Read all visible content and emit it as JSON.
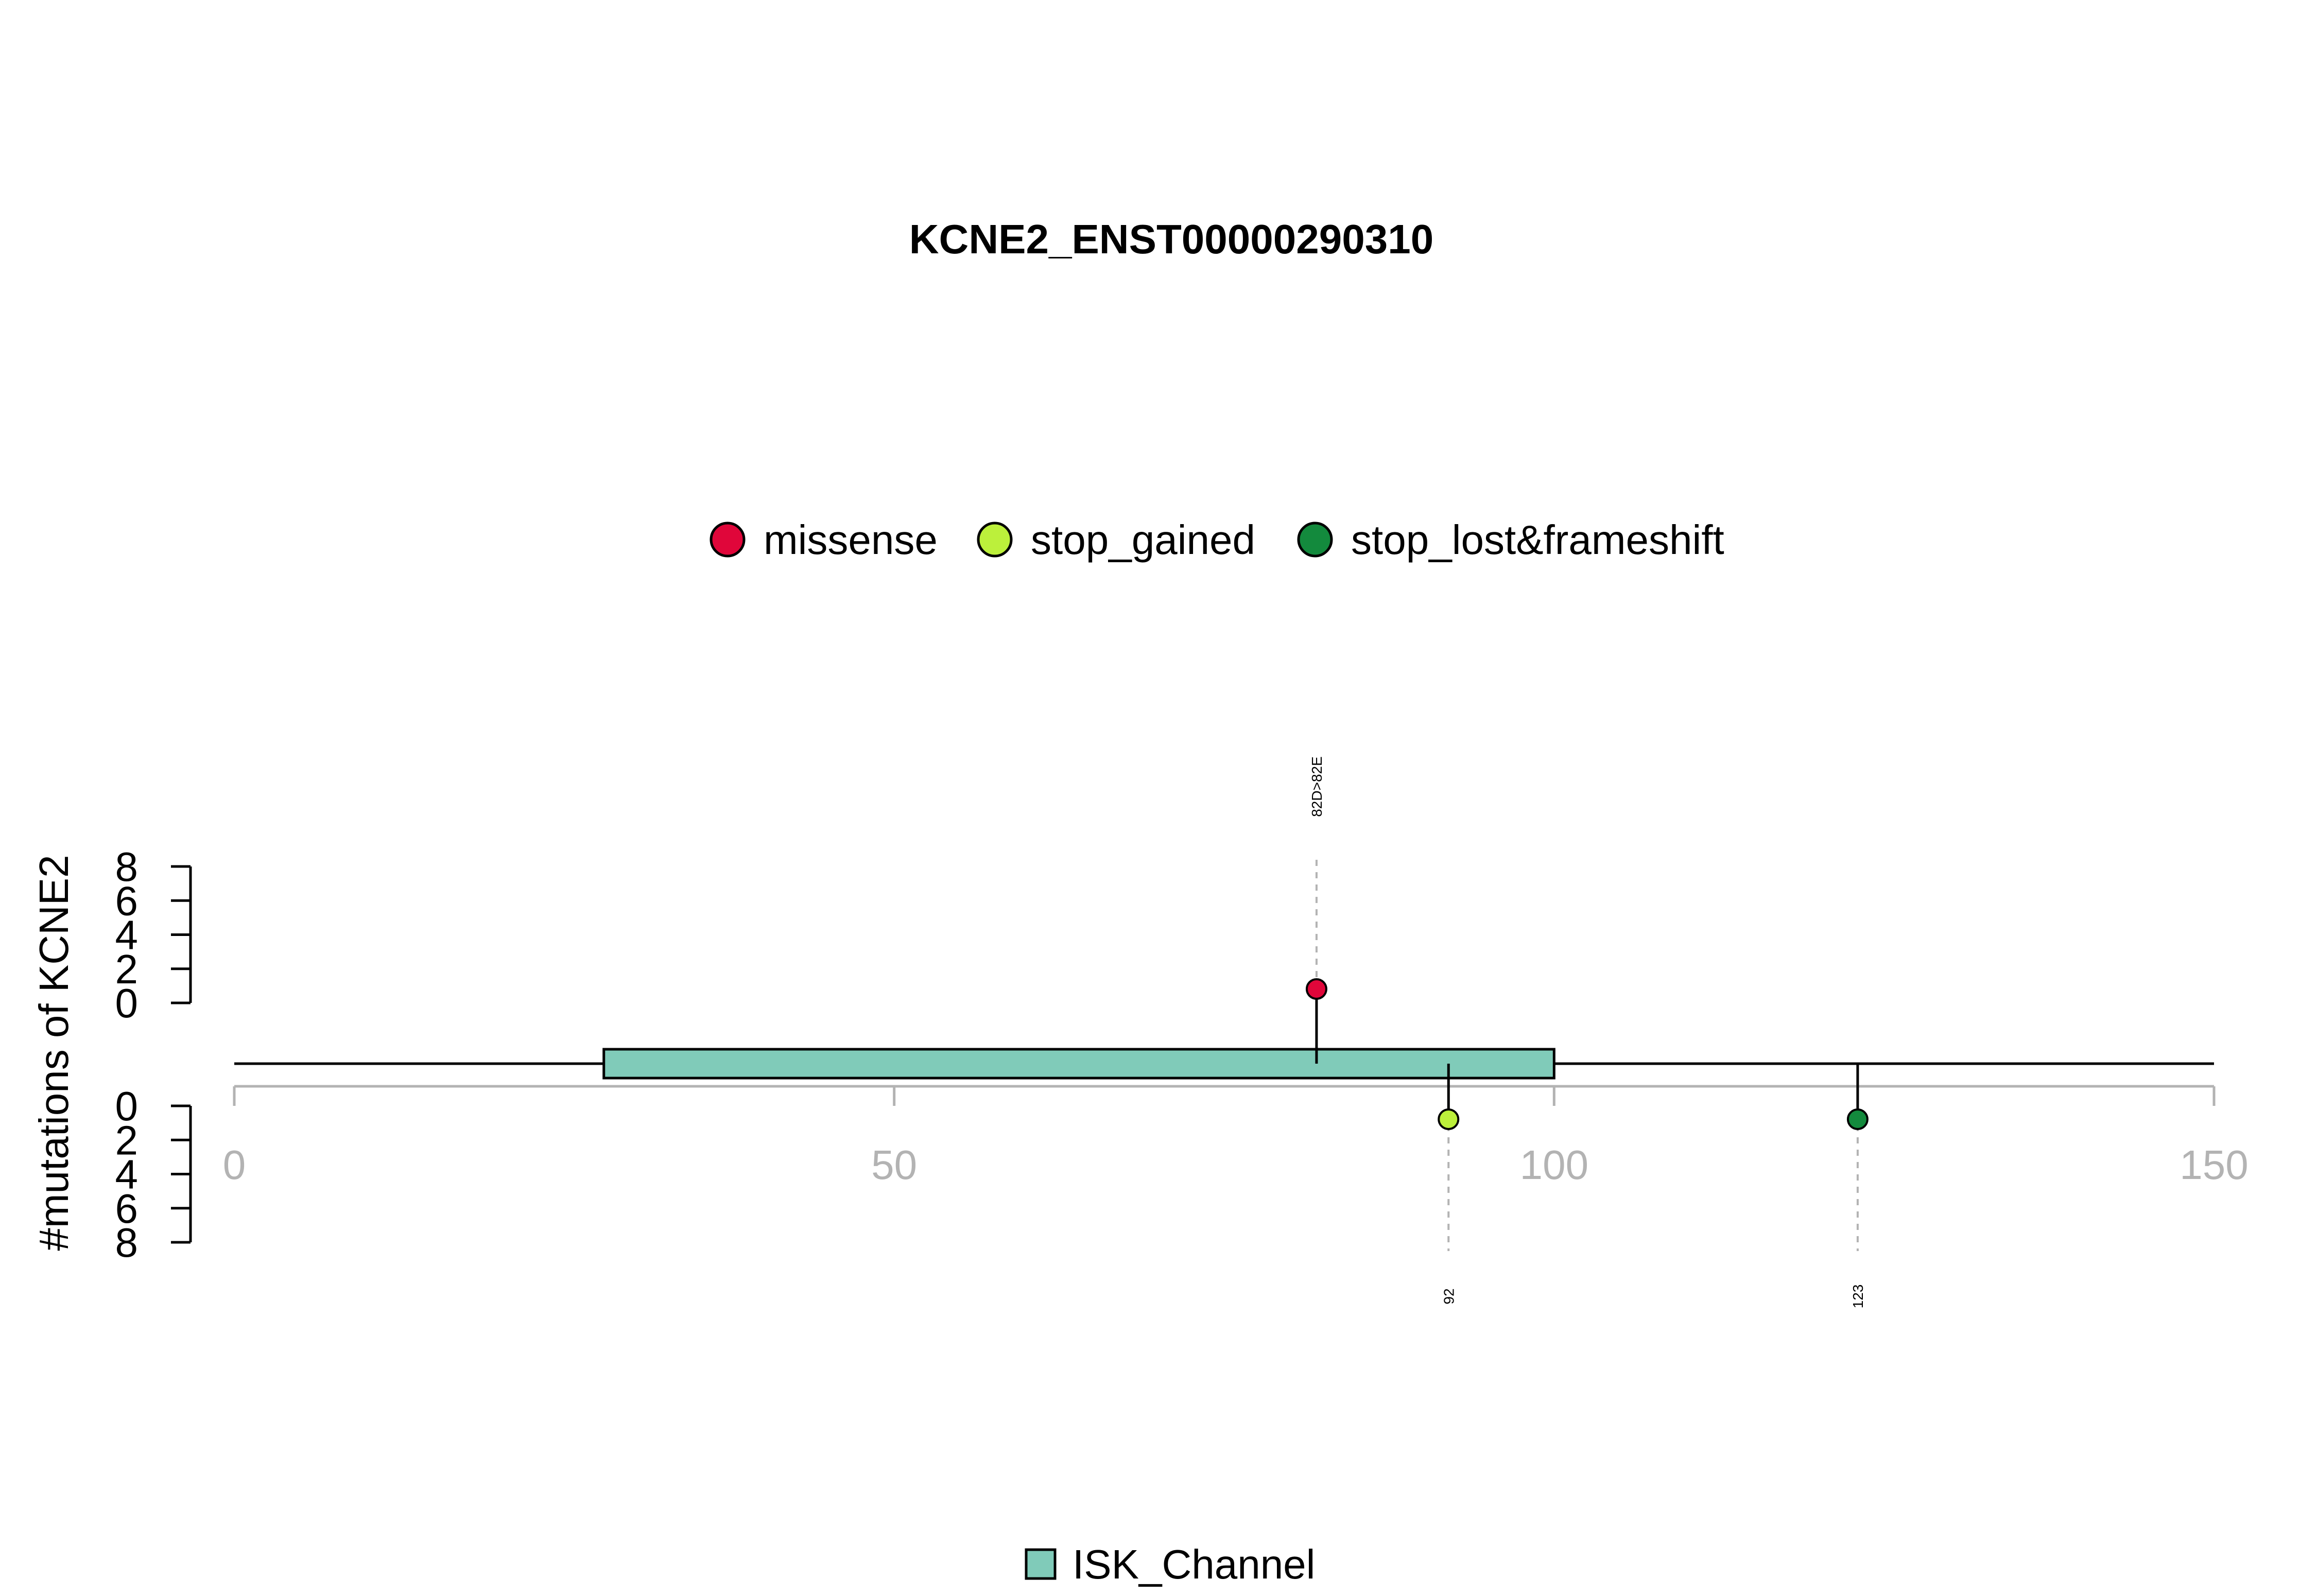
{
  "chart_data": {
    "type": "lollipop",
    "title": "KCNE2_ENST00000290310",
    "ylabel": "#mutations of KCNE2",
    "xlim": [
      0,
      150
    ],
    "x_ticks": [
      0,
      50,
      100,
      150
    ],
    "y_ticks_top": [
      0,
      2,
      4,
      6,
      8
    ],
    "y_ticks_bottom": [
      0,
      2,
      4,
      6,
      8
    ],
    "ylim": [
      0,
      8
    ],
    "protein_length": 150,
    "domains": [
      {
        "name": "ISK_Channel",
        "start": 28,
        "end": 100,
        "color": "#80cbb9"
      }
    ],
    "mutation_types": [
      {
        "name": "missense",
        "color": "#e0063a"
      },
      {
        "name": "stop_gained",
        "color": "#bcf03b"
      },
      {
        "name": "stop_lost&frameshift",
        "color": "#138a3d"
      }
    ],
    "mutations": [
      {
        "position": 82,
        "count": 1,
        "type": "missense",
        "side": "top",
        "label": "82D>82E"
      },
      {
        "position": 92,
        "count": 1,
        "type": "stop_gained",
        "side": "bottom",
        "label": "92"
      },
      {
        "position": 123,
        "count": 1,
        "type": "stop_lost&frameshift",
        "side": "bottom",
        "label": "123"
      }
    ]
  }
}
